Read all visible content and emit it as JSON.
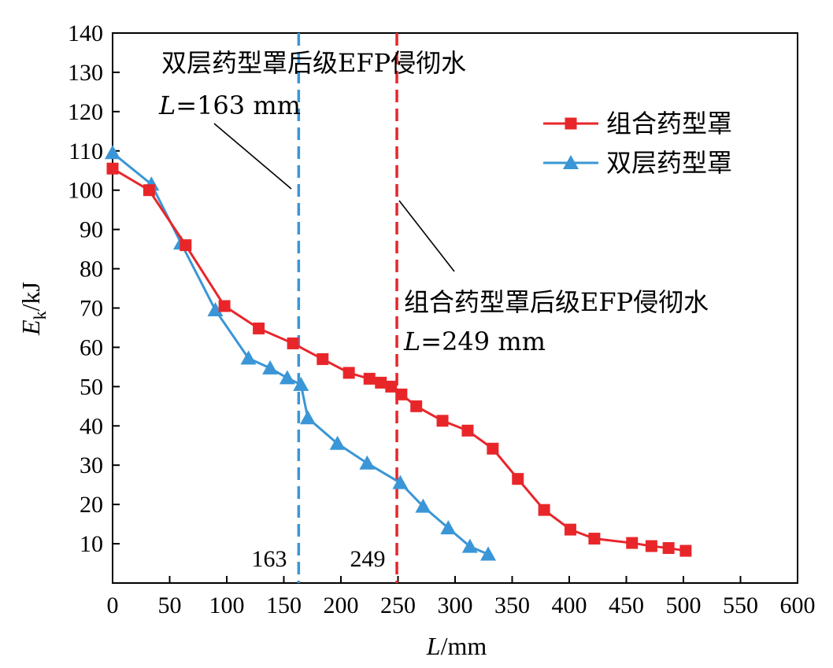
{
  "chart_data": {
    "type": "line",
    "title": "",
    "xlabel_var": "L",
    "xlabel_unit": "/mm",
    "ylabel_var": "E",
    "ylabel_sub": "k",
    "ylabel_unit": "/kJ",
    "xlim": [
      0,
      600
    ],
    "ylim": [
      0,
      140
    ],
    "xticks": [
      0,
      50,
      100,
      150,
      200,
      250,
      300,
      350,
      400,
      450,
      500,
      550,
      600
    ],
    "yticks": [
      10,
      20,
      30,
      40,
      50,
      60,
      70,
      80,
      90,
      100,
      110,
      120,
      130,
      140
    ],
    "grid": false,
    "legend_position": "top-right",
    "series": [
      {
        "name": "组合药型罩",
        "color": "#e8262a",
        "marker": "square",
        "x": [
          0,
          32,
          64,
          98,
          128,
          158,
          184,
          207,
          225,
          235,
          244,
          253,
          266,
          289,
          311,
          333,
          355,
          378,
          401,
          422,
          455,
          472,
          487,
          502
        ],
        "y": [
          105.5,
          100,
          86,
          70.5,
          64.8,
          61,
          57,
          53.5,
          52,
          51,
          50,
          48,
          45,
          41.3,
          38.8,
          34.2,
          26.5,
          18.6,
          13.6,
          11.3,
          10.2,
          9.4,
          8.9,
          8.2
        ]
      },
      {
        "name": "双层药型罩",
        "color": "#3a96d6",
        "marker": "triangle",
        "x": [
          0,
          34,
          60,
          90,
          119,
          138,
          153,
          165,
          171,
          197,
          223,
          252,
          272,
          294,
          313,
          329
        ],
        "y": [
          109.5,
          101.5,
          86.5,
          69.5,
          57.2,
          54.7,
          52.2,
          50.5,
          42,
          35.5,
          30.5,
          25.5,
          19.5,
          14,
          9.3,
          7.3
        ]
      }
    ],
    "vlines": [
      {
        "x": 163,
        "color": "#3a96d6",
        "label": "163"
      },
      {
        "x": 249,
        "color": "#e8262a",
        "label": "249"
      }
    ],
    "annotations": [
      {
        "line1": "双层药型罩后级EFP侵彻水",
        "line2_var": "L",
        "line2_rest": "=163 mm"
      },
      {
        "line1": "组合药型罩后级EFP侵彻水",
        "line2_var": "L",
        "line2_rest": "=249 mm"
      }
    ]
  }
}
